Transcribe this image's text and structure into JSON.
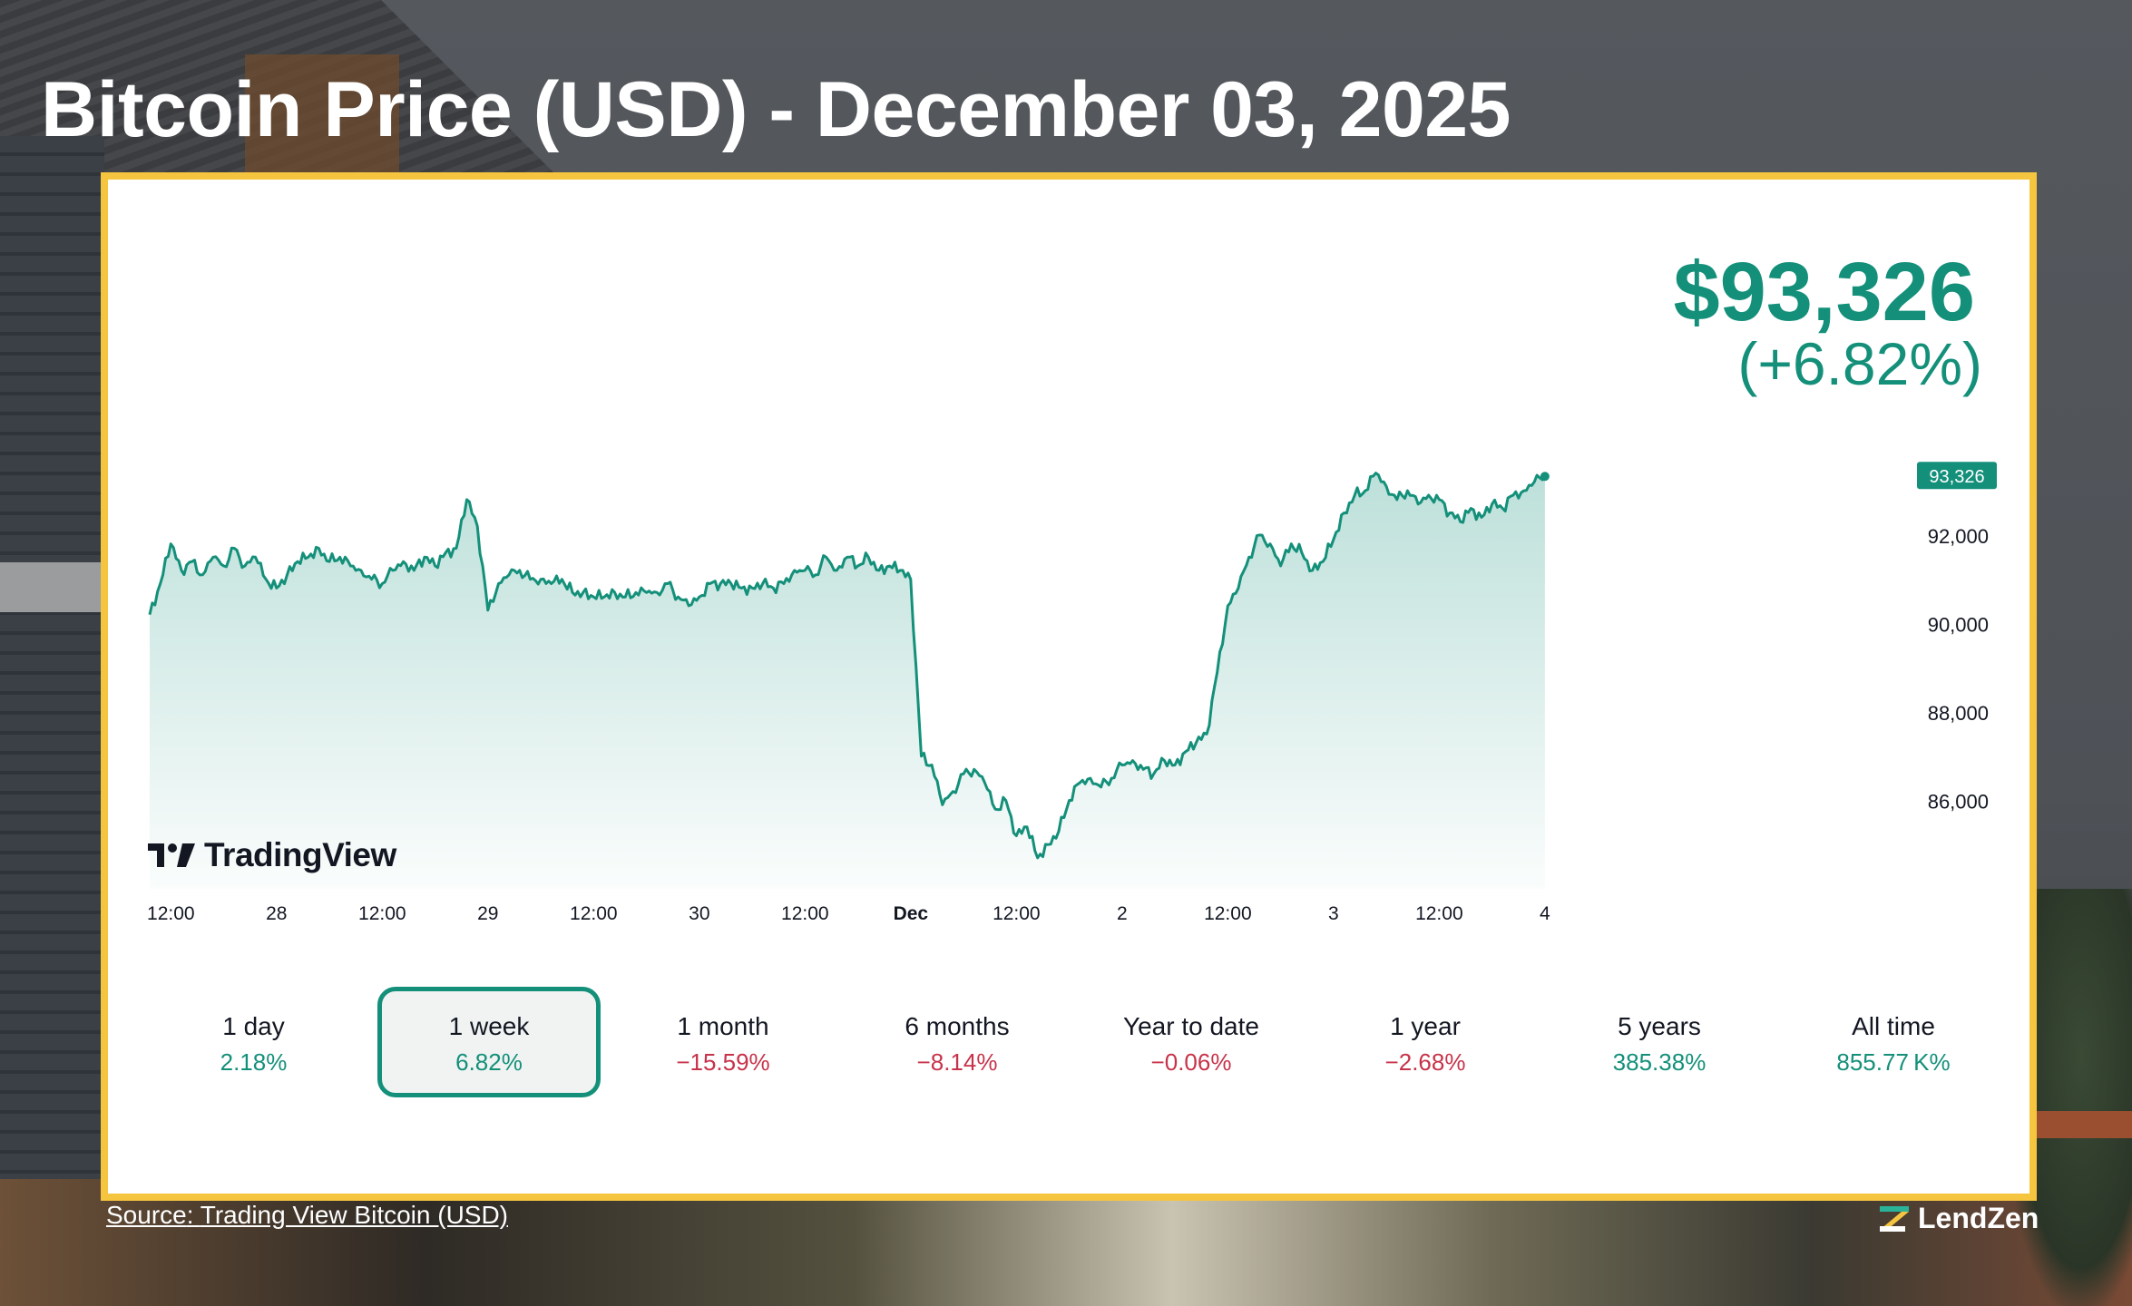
{
  "page": {
    "title": "Bitcoin Price (USD) - December 03, 2025",
    "source_label": "Source",
    "source_text": "Trading View Bitcoin (USD)",
    "brand": "LendZen"
  },
  "quote": {
    "price": "$93,326",
    "change": "(+6.82%)",
    "last_label": "93,326"
  },
  "logo_text": "TradingView",
  "colors": {
    "up": "#14907a",
    "down": "#c7334a",
    "frame": "#f5c540"
  },
  "periods": [
    {
      "label": "1 day",
      "change": "2.18%",
      "dir": "pos",
      "active": false
    },
    {
      "label": "1 week",
      "change": "6.82%",
      "dir": "pos",
      "active": true
    },
    {
      "label": "1 month",
      "change": "−15.59%",
      "dir": "neg",
      "active": false
    },
    {
      "label": "6 months",
      "change": "−8.14%",
      "dir": "neg",
      "active": false
    },
    {
      "label": "Year to date",
      "change": "−0.06%",
      "dir": "neg",
      "active": false
    },
    {
      "label": "1 year",
      "change": "−2.68%",
      "dir": "neg",
      "active": false
    },
    {
      "label": "5 years",
      "change": "385.38%",
      "dir": "pos",
      "active": false
    },
    {
      "label": "All time",
      "change": "855.77 K%",
      "dir": "pos",
      "active": false
    }
  ],
  "chart_data": {
    "type": "area",
    "title": "",
    "xlabel": "",
    "ylabel": "",
    "ylim": [
      84000,
      94500
    ],
    "xlim": [
      0,
      166
    ],
    "x_unit": "hours from chart start",
    "x_ticks": [
      {
        "x": 2,
        "label": "12:00",
        "bold": false
      },
      {
        "x": 12,
        "label": "28",
        "bold": false
      },
      {
        "x": 22,
        "label": "12:00",
        "bold": false
      },
      {
        "x": 32,
        "label": "29",
        "bold": false
      },
      {
        "x": 42,
        "label": "12:00",
        "bold": false
      },
      {
        "x": 52,
        "label": "30",
        "bold": false
      },
      {
        "x": 62,
        "label": "12:00",
        "bold": false
      },
      {
        "x": 72,
        "label": "Dec",
        "bold": true
      },
      {
        "x": 82,
        "label": "12:00",
        "bold": false
      },
      {
        "x": 92,
        "label": "2",
        "bold": false
      },
      {
        "x": 102,
        "label": "12:00",
        "bold": false
      },
      {
        "x": 112,
        "label": "3",
        "bold": false
      },
      {
        "x": 122,
        "label": "12:00",
        "bold": false
      },
      {
        "x": 132,
        "label": "4",
        "bold": false
      }
    ],
    "y_ticks": [
      {
        "y": 86000,
        "label": "86,000"
      },
      {
        "y": 88000,
        "label": "88,000"
      },
      {
        "y": 90000,
        "label": "90,000"
      },
      {
        "y": 92000,
        "label": "92,000"
      }
    ],
    "series": [
      {
        "values": [
          [
            0,
            90200
          ],
          [
            1,
            90900
          ],
          [
            2,
            91800
          ],
          [
            3,
            91200
          ],
          [
            4,
            91400
          ],
          [
            5,
            91100
          ],
          [
            6,
            91500
          ],
          [
            7,
            91300
          ],
          [
            8,
            91700
          ],
          [
            9,
            91300
          ],
          [
            10,
            91500
          ],
          [
            11,
            91000
          ],
          [
            12,
            90800
          ],
          [
            13,
            91100
          ],
          [
            14,
            91400
          ],
          [
            15,
            91500
          ],
          [
            16,
            91700
          ],
          [
            17,
            91400
          ],
          [
            18,
            91500
          ],
          [
            19,
            91300
          ],
          [
            20,
            91200
          ],
          [
            21,
            91000
          ],
          [
            22,
            90900
          ],
          [
            23,
            91200
          ],
          [
            24,
            91400
          ],
          [
            25,
            91200
          ],
          [
            26,
            91500
          ],
          [
            27,
            91300
          ],
          [
            28,
            91600
          ],
          [
            29,
            91700
          ],
          [
            30,
            92800
          ],
          [
            31,
            92200
          ],
          [
            32,
            90300
          ],
          [
            33,
            90900
          ],
          [
            34,
            91100
          ],
          [
            35,
            91200
          ],
          [
            36,
            91000
          ],
          [
            37,
            91000
          ],
          [
            38,
            90900
          ],
          [
            39,
            91000
          ],
          [
            40,
            90700
          ],
          [
            41,
            90700
          ],
          [
            42,
            90600
          ],
          [
            43,
            90600
          ],
          [
            44,
            90700
          ],
          [
            45,
            90600
          ],
          [
            46,
            90700
          ],
          [
            47,
            90700
          ],
          [
            48,
            90700
          ],
          [
            49,
            90900
          ],
          [
            50,
            90600
          ],
          [
            51,
            90400
          ],
          [
            52,
            90600
          ],
          [
            53,
            90900
          ],
          [
            54,
            90900
          ],
          [
            55,
            90900
          ],
          [
            56,
            90800
          ],
          [
            57,
            90800
          ],
          [
            58,
            90900
          ],
          [
            59,
            90800
          ],
          [
            60,
            90900
          ],
          [
            61,
            91200
          ],
          [
            62,
            91200
          ],
          [
            63,
            91100
          ],
          [
            64,
            91500
          ],
          [
            65,
            91200
          ],
          [
            66,
            91500
          ],
          [
            67,
            91300
          ],
          [
            68,
            91500
          ],
          [
            69,
            91200
          ],
          [
            70,
            91300
          ],
          [
            71,
            91200
          ],
          [
            72,
            91000
          ],
          [
            73,
            87000
          ],
          [
            74,
            86800
          ],
          [
            75,
            85900
          ],
          [
            76,
            86200
          ],
          [
            77,
            86600
          ],
          [
            78,
            86700
          ],
          [
            79,
            86400
          ],
          [
            80,
            85800
          ],
          [
            81,
            86000
          ],
          [
            82,
            85200
          ],
          [
            83,
            85400
          ],
          [
            84,
            84700
          ],
          [
            85,
            85000
          ],
          [
            86,
            85300
          ],
          [
            87,
            86000
          ],
          [
            88,
            86400
          ],
          [
            89,
            86500
          ],
          [
            90,
            86300
          ],
          [
            91,
            86500
          ],
          [
            92,
            86800
          ],
          [
            93,
            86900
          ],
          [
            94,
            86700
          ],
          [
            95,
            86600
          ],
          [
            96,
            86900
          ],
          [
            97,
            86800
          ],
          [
            98,
            87100
          ],
          [
            99,
            87300
          ],
          [
            100,
            87500
          ],
          [
            101,
            88900
          ],
          [
            102,
            90400
          ],
          [
            103,
            90800
          ],
          [
            104,
            91500
          ],
          [
            105,
            92000
          ],
          [
            106,
            91800
          ],
          [
            107,
            91300
          ],
          [
            108,
            91800
          ],
          [
            109,
            91600
          ],
          [
            110,
            91200
          ],
          [
            111,
            91400
          ],
          [
            112,
            91900
          ],
          [
            113,
            92500
          ],
          [
            114,
            92900
          ],
          [
            115,
            93000
          ],
          [
            116,
            93400
          ],
          [
            117,
            93100
          ],
          [
            118,
            92800
          ],
          [
            119,
            93000
          ],
          [
            120,
            92700
          ],
          [
            121,
            92900
          ],
          [
            122,
            92800
          ],
          [
            123,
            92500
          ],
          [
            124,
            92300
          ],
          [
            125,
            92600
          ],
          [
            126,
            92400
          ],
          [
            127,
            92700
          ],
          [
            128,
            92600
          ],
          [
            129,
            92900
          ],
          [
            130,
            93000
          ],
          [
            131,
            93200
          ],
          [
            132,
            93326
          ]
        ]
      }
    ]
  }
}
